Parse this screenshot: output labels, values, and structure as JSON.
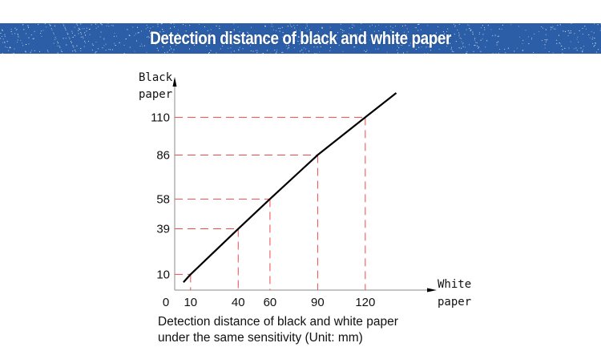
{
  "banner": {
    "title": "Detection distance of black and white paper",
    "color": "#2b5ea7"
  },
  "chart_data": {
    "type": "line",
    "title": "",
    "xlabel": [
      "White",
      "paper"
    ],
    "ylabel": [
      "Black",
      "paper"
    ],
    "origin_label": "0",
    "x_ticks": [
      10,
      40,
      60,
      90,
      120
    ],
    "y_ticks": [
      10,
      39,
      58,
      86,
      110
    ],
    "points": [
      {
        "x": 5.5,
        "y": 5
      },
      {
        "x": 10,
        "y": 10
      },
      {
        "x": 40,
        "y": 39
      },
      {
        "x": 60,
        "y": 58
      },
      {
        "x": 90,
        "y": 86
      },
      {
        "x": 120,
        "y": 110
      },
      {
        "x": 139.5,
        "y": 125.5
      }
    ],
    "guides": [
      {
        "x": 10,
        "y": 10
      },
      {
        "x": 40,
        "y": 39
      },
      {
        "x": 60,
        "y": 58
      },
      {
        "x": 90,
        "y": 86
      },
      {
        "x": 120,
        "y": 110
      }
    ],
    "line_color": "#000000",
    "guide_color": "#f0484c",
    "grid": false
  },
  "caption": {
    "line1": "Detection distance of black and white paper",
    "line2": "under the same sensitivity  (Unit: mm)"
  }
}
